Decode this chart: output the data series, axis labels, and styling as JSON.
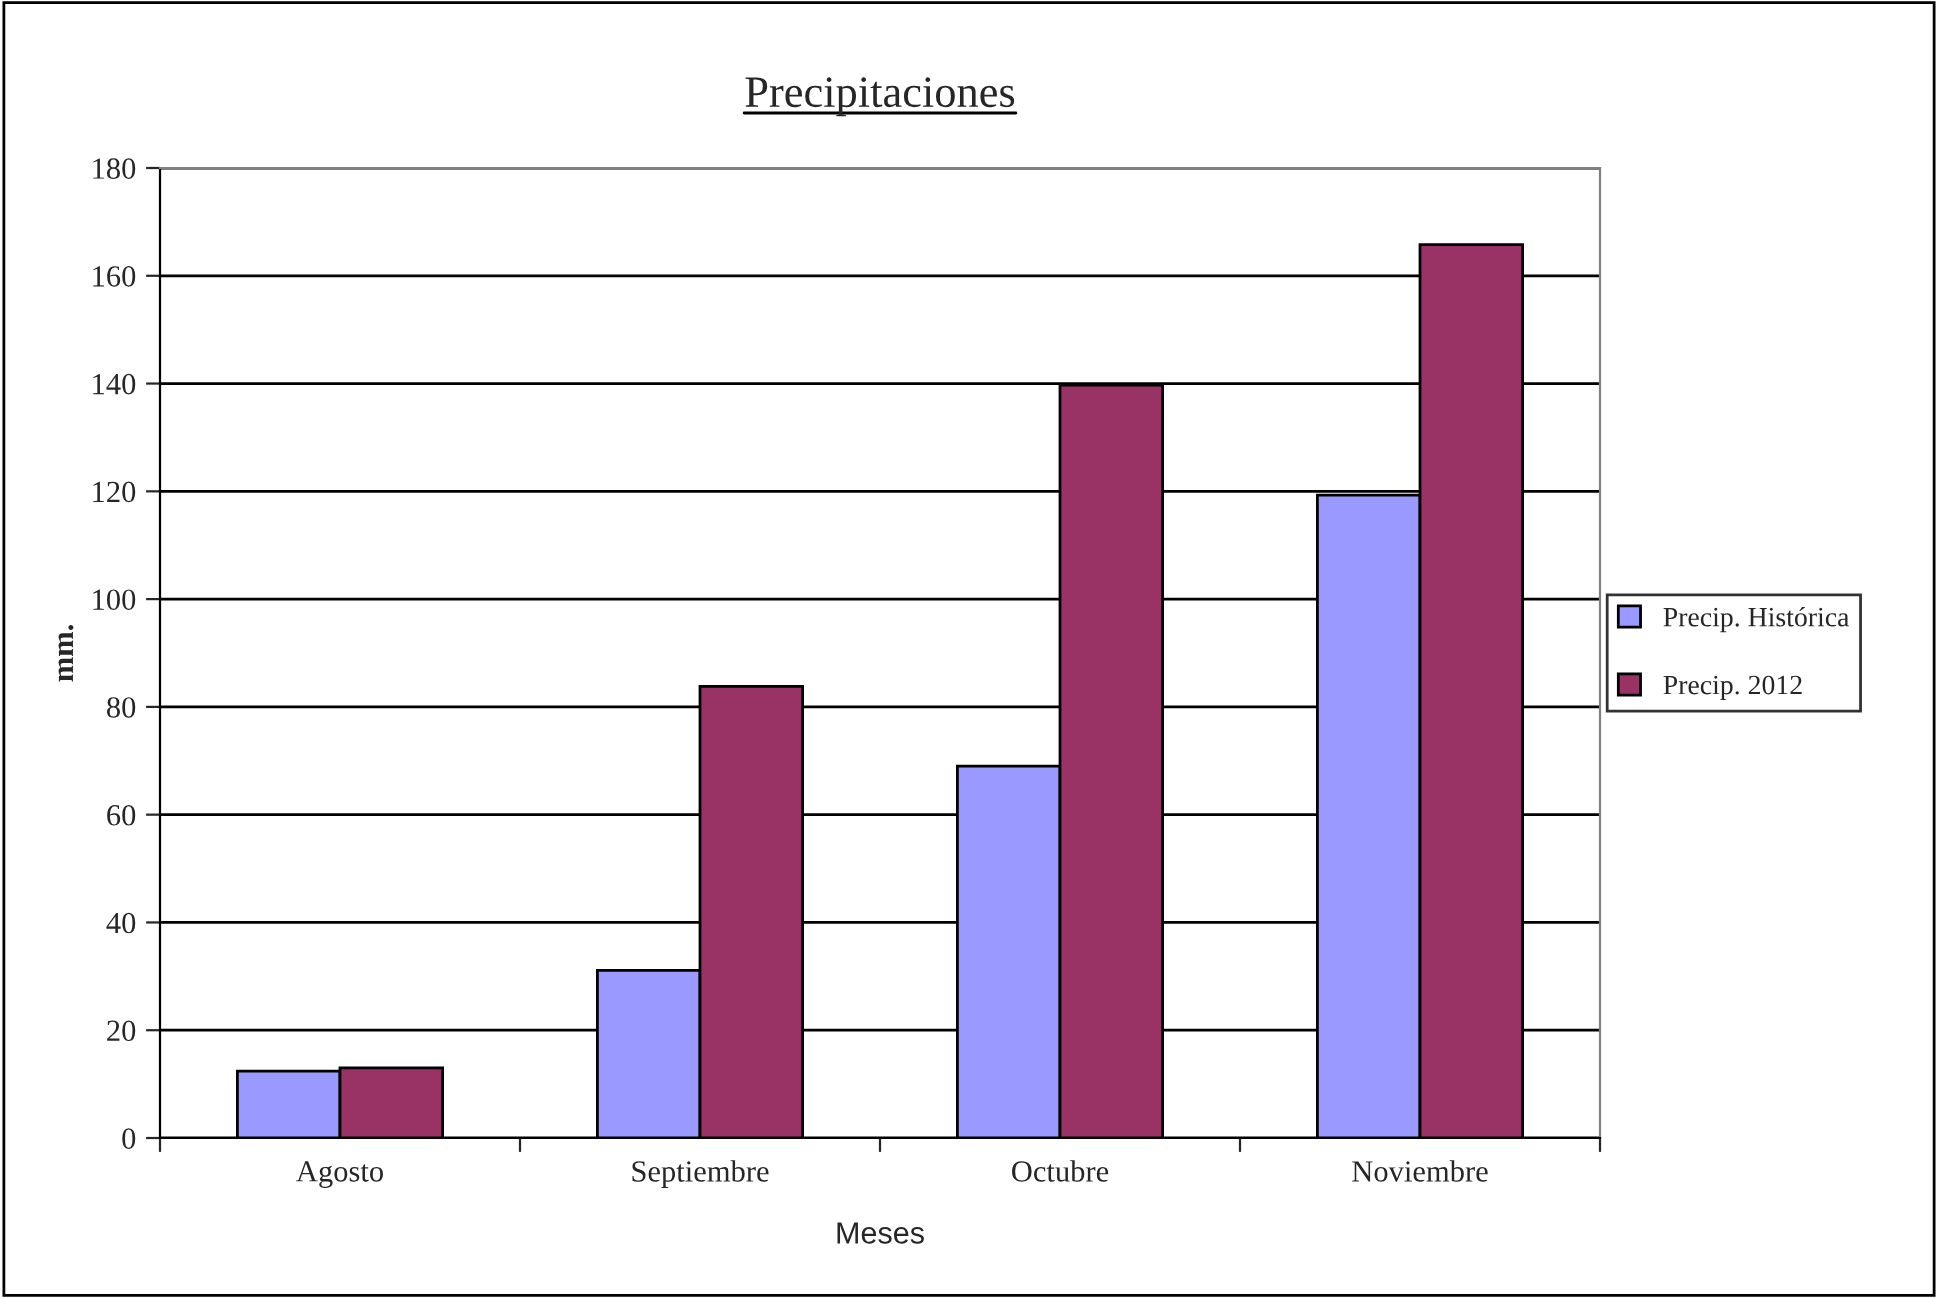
{
  "chart_data": {
    "type": "bar",
    "title": "Precipitaciones",
    "xlabel": "Meses",
    "ylabel": "mm.",
    "categories": [
      "Agosto",
      "Septiembre",
      "Octubre",
      "Noviembre"
    ],
    "series": [
      {
        "name": "Precip. Histórica",
        "color": "#9999ff",
        "values": [
          12.4,
          31.1,
          69.0,
          119.3
        ]
      },
      {
        "name": "Precip. 2012",
        "color": "#993366",
        "values": [
          13.0,
          83.8,
          139.7,
          165.8
        ]
      }
    ],
    "ylim": [
      0,
      180
    ],
    "yticks": [
      0,
      20,
      40,
      60,
      80,
      100,
      120,
      140,
      160,
      180
    ],
    "grid": "y",
    "legend": "right"
  }
}
